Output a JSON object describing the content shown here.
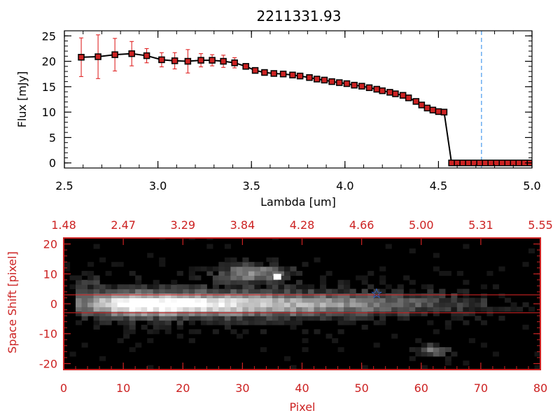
{
  "colors": {
    "axis": "#000000",
    "red_axis": "#cc2222",
    "series": "#000000",
    "marker": "#cc2222",
    "errorbar": "#dd1111",
    "cutoff": "#4499ee",
    "star": "#3377ff",
    "trace_band": "#cc2222"
  },
  "chart_data": [
    {
      "type": "line",
      "title": "2211331.93",
      "xlabel": "Lambda [um]",
      "ylabel": "Flux [mJy]",
      "xlim": [
        2.5,
        5.0
      ],
      "ylim": [
        -1,
        26
      ],
      "xticks": [
        "2.5",
        "3.0",
        "3.5",
        "4.0",
        "4.5",
        "5.0"
      ],
      "yticks": [
        "0",
        "5",
        "10",
        "15",
        "20",
        "25"
      ],
      "cutoff_x": 4.73,
      "series": [
        {
          "name": "flux",
          "x": [
            2.59,
            2.68,
            2.77,
            2.86,
            2.94,
            3.02,
            3.09,
            3.16,
            3.23,
            3.29,
            3.35,
            3.41,
            3.47,
            3.52,
            3.57,
            3.62,
            3.67,
            3.72,
            3.76,
            3.81,
            3.85,
            3.89,
            3.93,
            3.97,
            4.01,
            4.05,
            4.09,
            4.13,
            4.17,
            4.2,
            4.24,
            4.27,
            4.31,
            4.34,
            4.38,
            4.41,
            4.44,
            4.47,
            4.5,
            4.53,
            4.57,
            4.6,
            4.63,
            4.66,
            4.69,
            4.72,
            4.75,
            4.78,
            4.81,
            4.84,
            4.87,
            4.9,
            4.93,
            4.96,
            4.99
          ],
          "y": [
            20.8,
            20.9,
            21.3,
            21.5,
            21.1,
            20.3,
            20.1,
            20.0,
            20.2,
            20.2,
            20.0,
            19.7,
            19.0,
            18.2,
            17.8,
            17.6,
            17.5,
            17.3,
            17.1,
            16.8,
            16.5,
            16.3,
            16.0,
            15.8,
            15.6,
            15.3,
            15.1,
            14.8,
            14.5,
            14.2,
            13.9,
            13.6,
            13.3,
            12.8,
            12.1,
            11.4,
            10.8,
            10.4,
            10.1,
            10.0,
            0.0,
            0.0,
            0.0,
            0.0,
            0.0,
            0.0,
            0.0,
            0.0,
            0.0,
            0.0,
            0.0,
            0.0,
            0.0,
            0.0,
            0.0
          ],
          "yerr": [
            3.8,
            4.3,
            3.2,
            2.4,
            1.4,
            1.4,
            1.6,
            2.3,
            1.3,
            1.1,
            1.2,
            1.0,
            0.5,
            0.4,
            0.3,
            0.3,
            0.2,
            0.2,
            0.2,
            0.2,
            0.2,
            0.2,
            0.2,
            0.2,
            0.2,
            0.2,
            0.2,
            0.2,
            0.2,
            0.2,
            0.2,
            0.2,
            0.2,
            0.2,
            0.2,
            0.2,
            0.2,
            0.2,
            0.2,
            0.2,
            0.2,
            0.2,
            0.2,
            0.2,
            0.2,
            0.2,
            0.2,
            0.2,
            0.2,
            0.2,
            0.2,
            0.2,
            0.2,
            0.2,
            0.2
          ]
        }
      ]
    },
    {
      "type": "heatmap",
      "title": "",
      "xlabel": "Pixel",
      "ylabel": "Space Shift [pixel]",
      "xlim": [
        0,
        80
      ],
      "ylim": [
        -22,
        22
      ],
      "xticks": [
        "0",
        "10",
        "20",
        "30",
        "40",
        "50",
        "60",
        "70",
        "80"
      ],
      "yticks": [
        "-20",
        "-10",
        "0",
        "10",
        "20"
      ],
      "top_ticks": [
        "1.48",
        "2.47",
        "3.29",
        "3.84",
        "4.28",
        "4.66",
        "5.00",
        "5.31",
        "5.55"
      ],
      "trace_band": [
        -3,
        3
      ],
      "marker": {
        "label": "star",
        "x": 52.5,
        "y": 3.5
      }
    }
  ]
}
